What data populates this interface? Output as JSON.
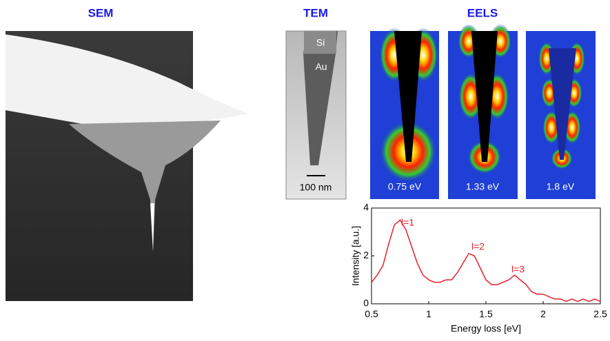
{
  "panels": {
    "sem": "SEM",
    "tem": "TEM",
    "eels": "EELS"
  },
  "tem_labels": {
    "si": "Si",
    "au": "Au",
    "scale": "100 nm"
  },
  "eels_energies": [
    "0.75 eV",
    "1.33 eV",
    "1.8 eV"
  ],
  "chart_data": {
    "type": "line",
    "xlabel": "Energy loss [eV]",
    "ylabel": "Intensity [a.u.]",
    "x": [
      0.5,
      0.55,
      0.6,
      0.65,
      0.7,
      0.75,
      0.8,
      0.85,
      0.9,
      0.95,
      1.0,
      1.05,
      1.1,
      1.15,
      1.2,
      1.25,
      1.3,
      1.35,
      1.4,
      1.45,
      1.5,
      1.55,
      1.6,
      1.65,
      1.7,
      1.75,
      1.8,
      1.85,
      1.9,
      1.95,
      2.0,
      2.05,
      2.1,
      2.15,
      2.2,
      2.25,
      2.3,
      2.35,
      2.4,
      2.45,
      2.5
    ],
    "series": [
      {
        "color": "#e8202a",
        "values": [
          0.9,
          1.2,
          1.6,
          2.5,
          3.3,
          3.5,
          3.1,
          2.4,
          1.7,
          1.2,
          1.0,
          0.9,
          0.9,
          1.0,
          1.0,
          1.3,
          1.7,
          2.1,
          2.0,
          1.5,
          1.0,
          0.8,
          0.8,
          0.9,
          1.0,
          1.2,
          1.0,
          0.8,
          0.5,
          0.4,
          0.4,
          0.3,
          0.2,
          0.2,
          0.1,
          0.2,
          0.1,
          0.2,
          0.1,
          0.2,
          0.1
        ]
      }
    ],
    "xlim": [
      0.5,
      2.5
    ],
    "ylim": [
      0,
      4
    ],
    "xticks": [
      0.5,
      1,
      1.5,
      2,
      2.5
    ],
    "yticks": [
      0,
      2,
      4
    ],
    "annotations": [
      "l=1",
      "l=2",
      "l=3"
    ]
  }
}
